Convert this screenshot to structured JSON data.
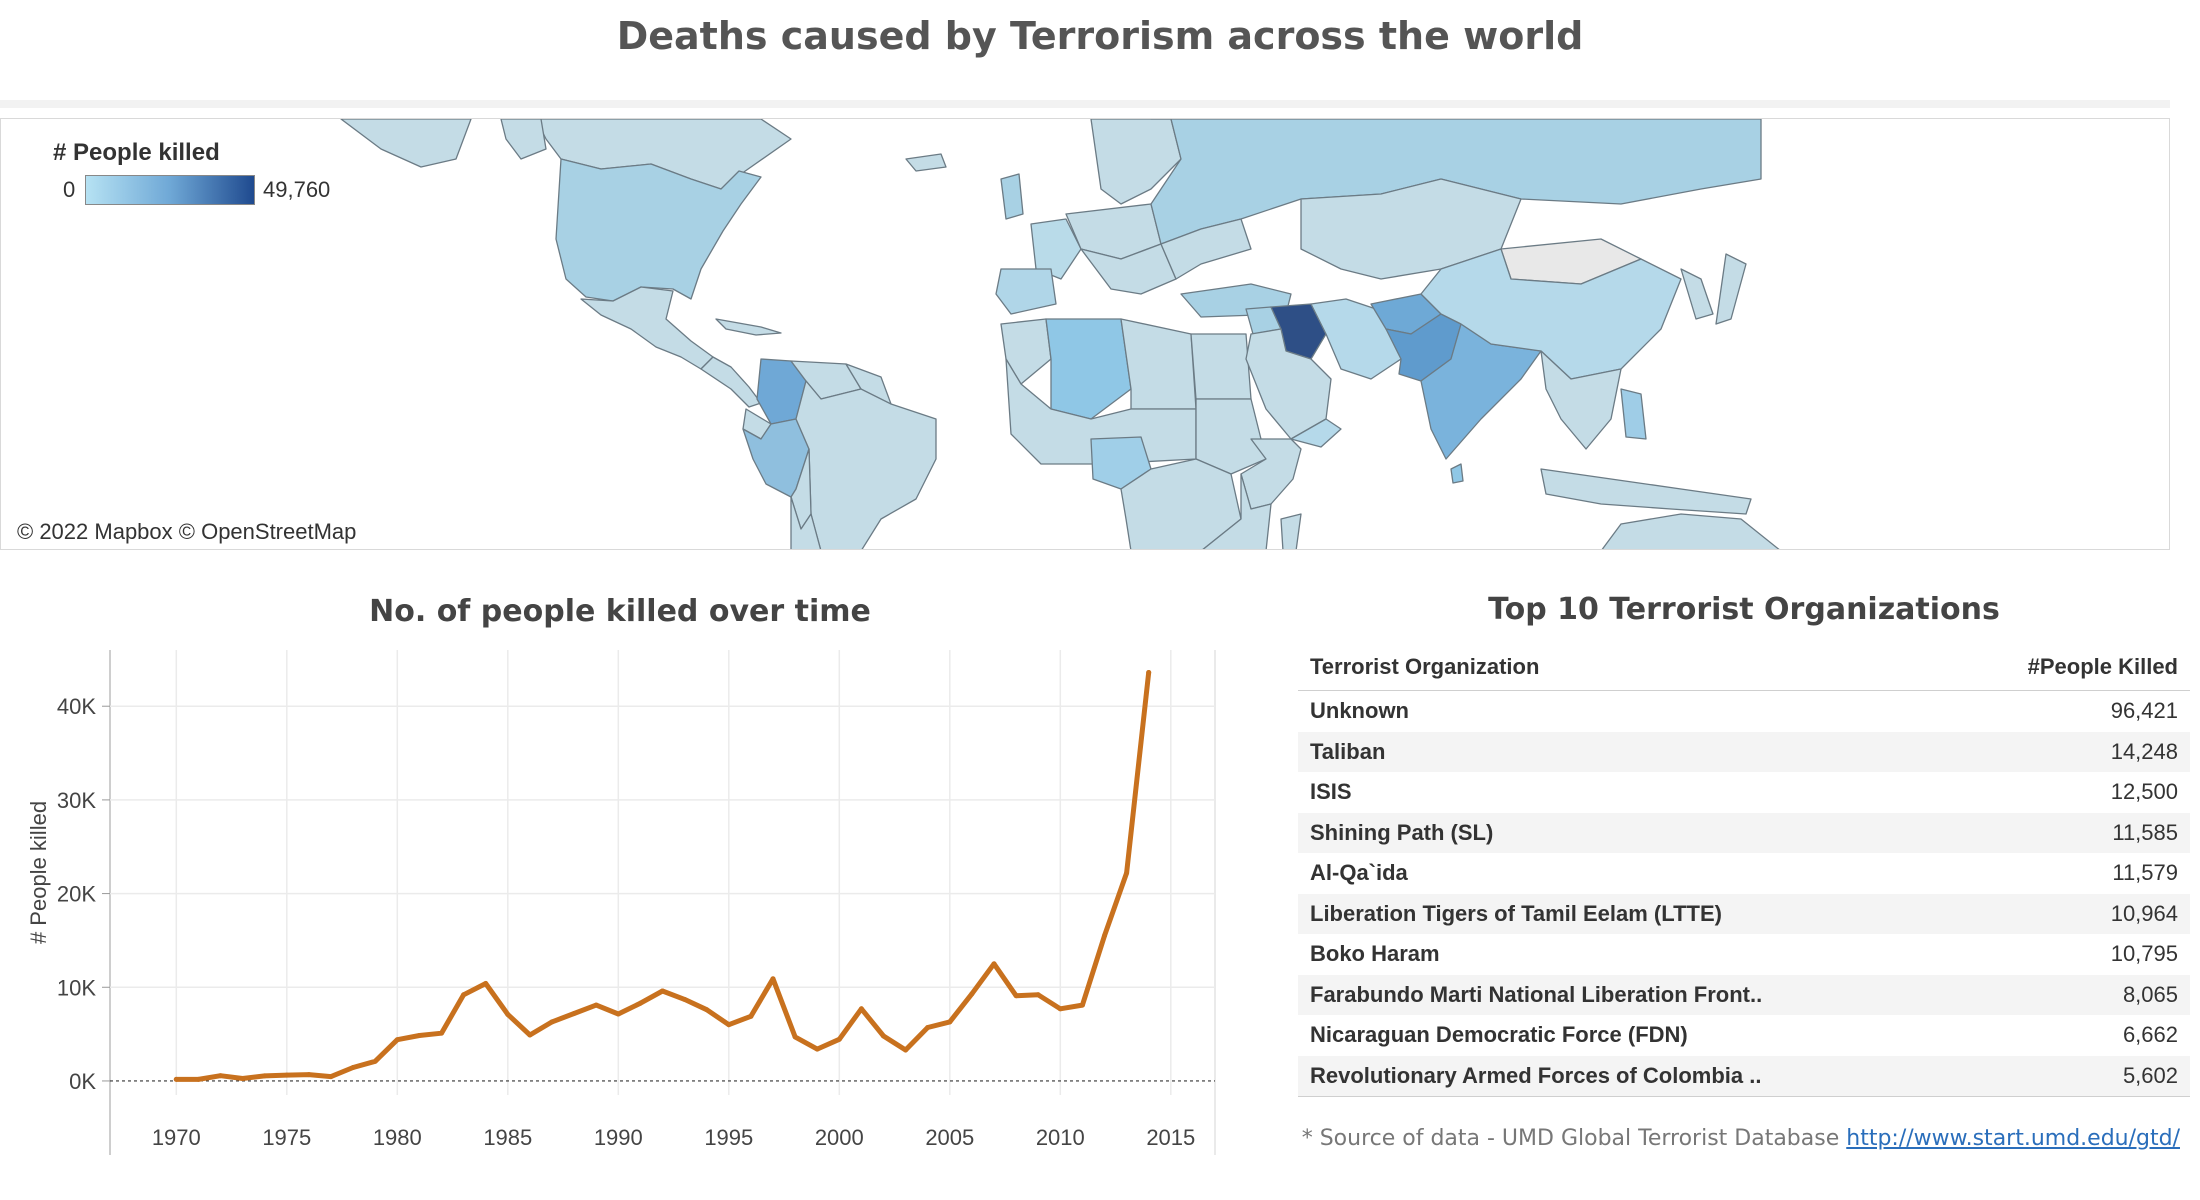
{
  "dashboard": {
    "title": "Deaths caused by Terrorism across the world"
  },
  "map": {
    "legend_title": "# People killed",
    "legend_min": "0",
    "legend_max": "49,760",
    "attribution": "© 2022 Mapbox © OpenStreetMap",
    "colors": {
      "low": "#b6e2f3",
      "high": "#1f4a8f",
      "land": "#c4dce6",
      "border": "#6b7b85",
      "nodata": "#e8e8e8"
    }
  },
  "line_panel": {
    "title": "No. of people killed over time"
  },
  "table_panel": {
    "title": "Top 10 Terrorist Organizations",
    "col_org": "Terrorist Organization",
    "col_killed": "#People Killed",
    "rows": [
      {
        "org": "Unknown",
        "killed": "96,421"
      },
      {
        "org": "Taliban",
        "killed": "14,248"
      },
      {
        "org": "ISIS",
        "killed": "12,500"
      },
      {
        "org": "Shining Path (SL)",
        "killed": "11,585"
      },
      {
        "org": "Al-Qa`ida",
        "killed": "11,579"
      },
      {
        "org": "Liberation Tigers of Tamil Eelam (LTTE)",
        "killed": "10,964"
      },
      {
        "org": "Boko Haram",
        "killed": "10,795"
      },
      {
        "org": "Farabundo Marti National Liberation Front..",
        "killed": "8,065"
      },
      {
        "org": "Nicaraguan Democratic Force (FDN)",
        "killed": "6,662"
      },
      {
        "org": "Revolutionary Armed Forces of Colombia ..",
        "killed": "5,602"
      }
    ]
  },
  "source": {
    "prefix": "* Source of data - UMD Global Terrorist Database",
    "link": "http://www.start.umd.edu/gtd/"
  },
  "chart_data": [
    {
      "type": "line",
      "title": "No. of people killed over time",
      "xlabel": "",
      "ylabel": "# People killed",
      "x_ticks": [
        "1970",
        "1975",
        "1980",
        "1985",
        "1990",
        "1995",
        "2000",
        "2005",
        "2010",
        "2015"
      ],
      "y_ticks": [
        "0K",
        "10K",
        "20K",
        "30K",
        "40K"
      ],
      "xlim": [
        1967,
        2017
      ],
      "ylim": [
        -1500,
        46000
      ],
      "grid": true,
      "color": "#c8711e",
      "x": [
        1970,
        1971,
        1972,
        1973,
        1974,
        1975,
        1976,
        1977,
        1978,
        1979,
        1980,
        1981,
        1982,
        1983,
        1984,
        1985,
        1986,
        1987,
        1988,
        1989,
        1990,
        1991,
        1992,
        1993,
        1994,
        1995,
        1996,
        1997,
        1998,
        1999,
        2000,
        2001,
        2002,
        2003,
        2004,
        2005,
        2006,
        2007,
        2008,
        2009,
        2010,
        2011,
        2012,
        2013,
        2014
      ],
      "y": [
        170,
        170,
        560,
        260,
        540,
        620,
        680,
        460,
        1440,
        2100,
        4400,
        4850,
        5100,
        9200,
        10400,
        7100,
        4900,
        6300,
        7200,
        8100,
        7150,
        8300,
        9600,
        8700,
        7600,
        6000,
        6900,
        10900,
        4700,
        3400,
        4450,
        7700,
        4800,
        3300,
        5700,
        6300,
        9300,
        12500,
        9100,
        9200,
        7700,
        8100,
        15500,
        22200,
        43600
      ]
    },
    {
      "type": "table",
      "title": "Top 10 Terrorist Organizations",
      "columns": [
        "Terrorist Organization",
        "#People Killed"
      ],
      "categories": [
        "Unknown",
        "Taliban",
        "ISIS",
        "Shining Path (SL)",
        "Al-Qa`ida",
        "Liberation Tigers of Tamil Eelam (LTTE)",
        "Boko Haram",
        "Farabundo Marti National Liberation Front..",
        "Nicaraguan Democratic Force (FDN)",
        "Revolutionary Armed Forces of Colombia .."
      ],
      "values": [
        96421,
        14248,
        12500,
        11585,
        11579,
        10964,
        10795,
        8065,
        6662,
        5602
      ]
    },
    {
      "type": "heatmap",
      "title": "Deaths caused by Terrorism across the world",
      "legend_title": "# People killed",
      "range": [
        0,
        49760
      ],
      "highlighted_regions": [
        {
          "region": "Iraq",
          "level": 1.0
        },
        {
          "region": "Pakistan",
          "level": 0.55
        },
        {
          "region": "Afghanistan",
          "level": 0.55
        },
        {
          "region": "India",
          "level": 0.5
        },
        {
          "region": "Colombia",
          "level": 0.4
        },
        {
          "region": "Peru",
          "level": 0.35
        },
        {
          "region": "Nigeria",
          "level": 0.3
        },
        {
          "region": "Algeria",
          "level": 0.3
        },
        {
          "region": "Sri Lanka",
          "level": 0.3
        }
      ]
    }
  ]
}
